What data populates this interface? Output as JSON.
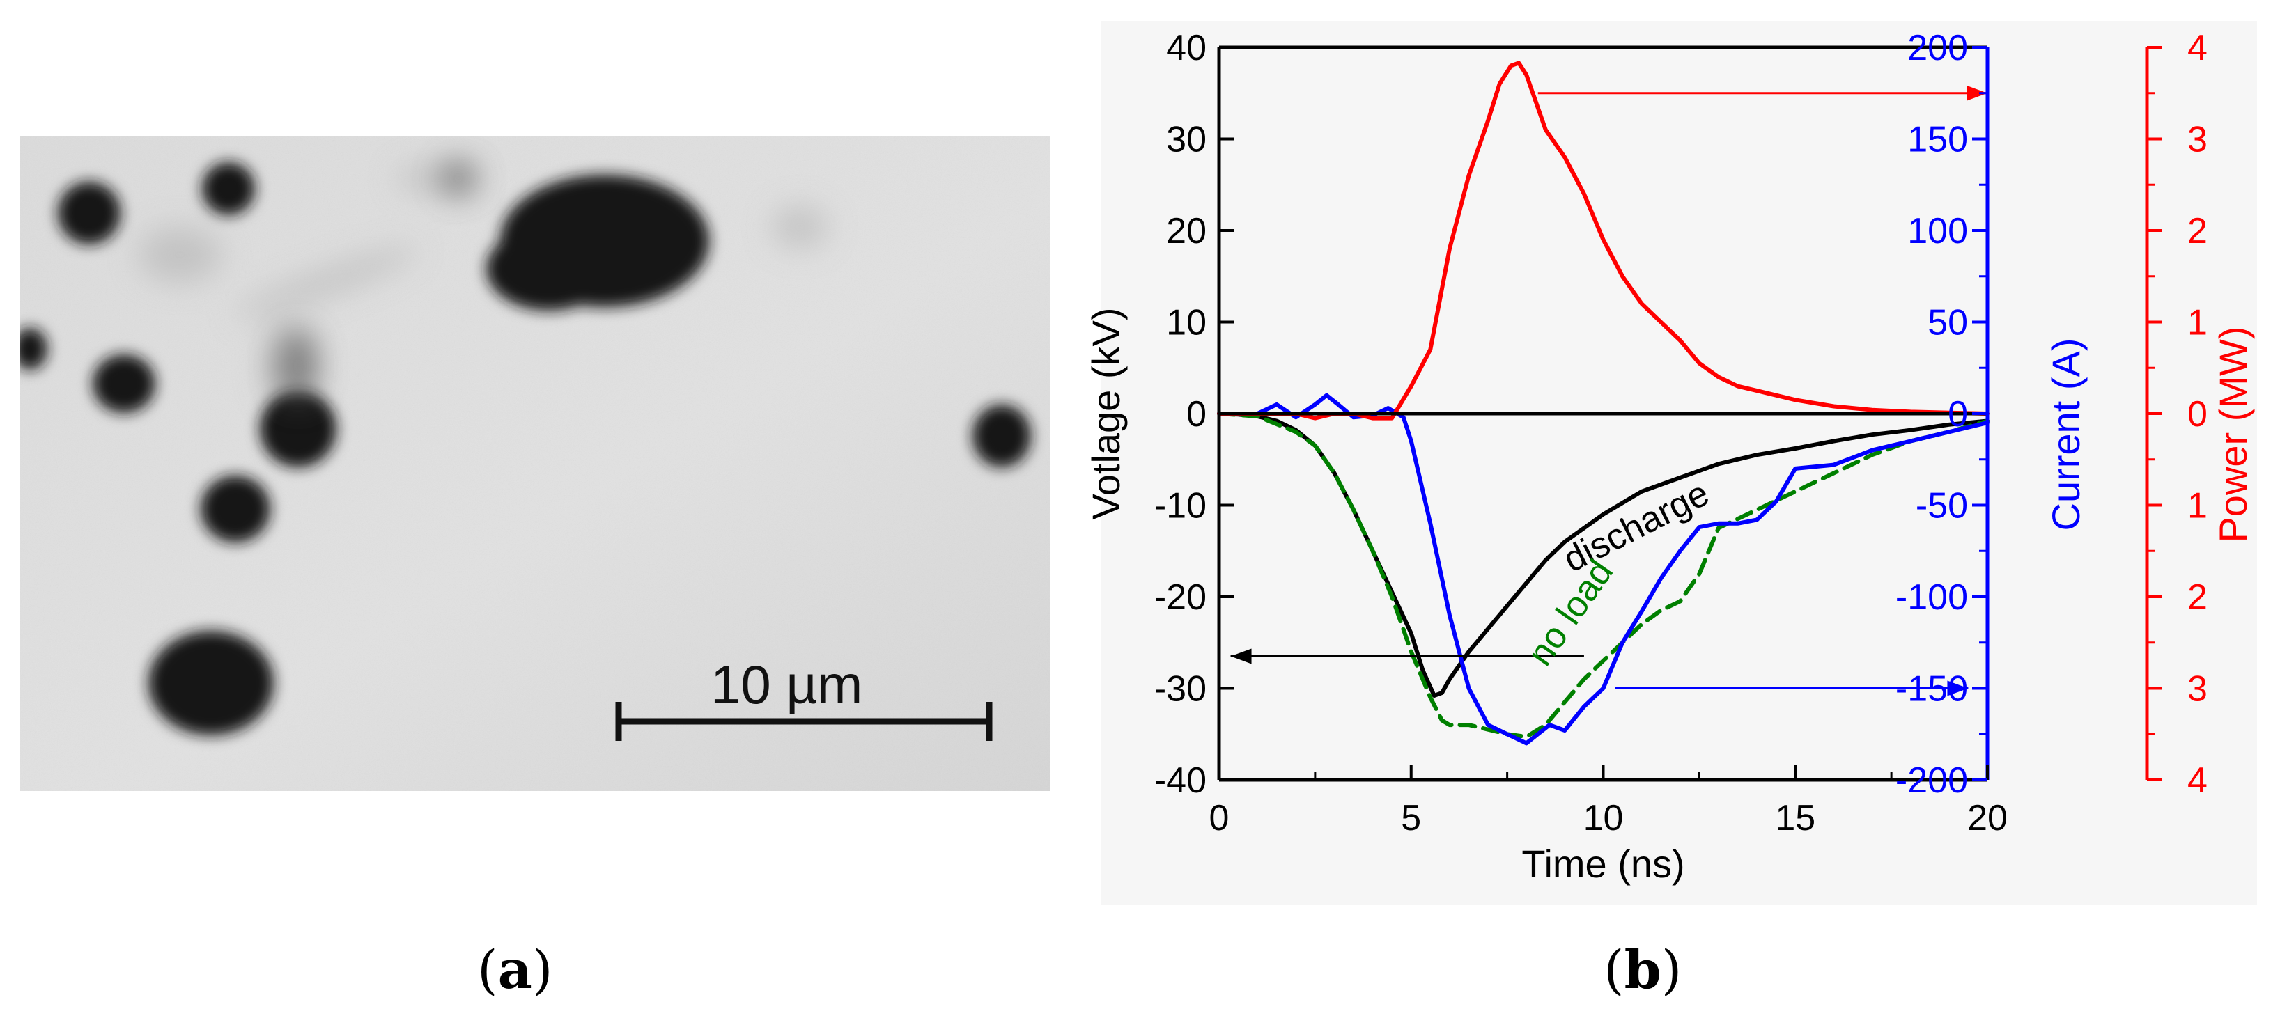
{
  "panel_a": {
    "scale_bar_label": "10 µm",
    "caption_open": "(",
    "caption_letter": "a",
    "caption_close": ")"
  },
  "panel_b": {
    "caption_open": "(",
    "caption_letter": "b",
    "caption_close": ")"
  },
  "chart_data": {
    "type": "line",
    "xlabel": "Time (ns)",
    "xlim": [
      0,
      20
    ],
    "xticks": [
      0,
      5,
      10,
      15,
      20
    ],
    "axes": {
      "voltage": {
        "label": "Votlage (kV)",
        "ylim": [
          -40,
          40
        ],
        "ticks": [
          -40,
          -30,
          -20,
          -10,
          0,
          10,
          20,
          30,
          40
        ],
        "color": "#000000"
      },
      "current": {
        "label": "Current (A)",
        "ylim": [
          -200,
          200
        ],
        "ticks": [
          -200,
          -150,
          -100,
          -50,
          0,
          50,
          100,
          150,
          200
        ],
        "color": "#0000ff"
      },
      "power": {
        "label": "Power (MW)",
        "ylim": [
          -4,
          4
        ],
        "ticks": [
          -4,
          -3,
          -2,
          -1,
          0,
          1,
          2,
          3,
          4
        ],
        "tick_labels": [
          "4",
          "3",
          "2",
          "1",
          "0",
          "1",
          "2",
          "3",
          "4"
        ],
        "color": "#ff0000"
      }
    },
    "series": [
      {
        "name": "discharge",
        "axis": "voltage",
        "color": "#000000",
        "dash": false,
        "x": [
          0,
          0.5,
          1,
          1.5,
          2,
          2.5,
          3,
          3.5,
          4,
          4.5,
          5,
          5.3,
          5.6,
          5.8,
          6,
          6.5,
          7,
          7.5,
          8,
          8.5,
          9,
          9.5,
          10,
          11,
          12,
          13,
          14,
          15,
          16,
          17,
          18,
          19,
          20
        ],
        "y": [
          0,
          -0.1,
          -0.3,
          -0.8,
          -1.8,
          -3.5,
          -6.5,
          -10.5,
          -15,
          -19.5,
          -24,
          -28,
          -30.8,
          -30.5,
          -29,
          -26,
          -23.5,
          -21,
          -18.5,
          -16,
          -14,
          -12.5,
          -11,
          -8.5,
          -7,
          -5.5,
          -4.5,
          -3.8,
          -3,
          -2.3,
          -1.8,
          -1.2,
          -0.8
        ]
      },
      {
        "name": "no load",
        "axis": "voltage",
        "color": "#008000",
        "dash": true,
        "x": [
          0,
          1,
          2,
          2.5,
          3,
          3.5,
          4,
          4.5,
          5,
          5.5,
          5.8,
          6,
          6.5,
          7,
          7.5,
          8,
          8.5,
          9,
          9.5,
          10,
          10.5,
          11,
          11.5,
          12,
          12.5,
          13,
          13.5,
          14,
          15,
          16,
          17,
          18,
          19,
          20
        ],
        "y": [
          0,
          -0.3,
          -2,
          -3.5,
          -6.5,
          -10.5,
          -15,
          -20,
          -26,
          -31,
          -33.5,
          -34,
          -34,
          -34.5,
          -35,
          -35.3,
          -34,
          -31.5,
          -29,
          -27,
          -25,
          -23,
          -21.5,
          -20.5,
          -17.5,
          -12.5,
          -11.5,
          -10.5,
          -8.5,
          -6.5,
          -4.5,
          -3,
          -2,
          -0.8
        ]
      },
      {
        "name": "current",
        "axis": "current",
        "color": "#0000ff",
        "dash": false,
        "x": [
          0,
          1,
          1.5,
          2,
          2.5,
          2.8,
          3.1,
          3.5,
          4,
          4.4,
          4.8,
          5,
          5.5,
          6,
          6.5,
          7,
          7.5,
          7.8,
          8,
          8.3,
          8.6,
          9,
          9.5,
          10,
          10.5,
          11,
          11.5,
          12,
          12.5,
          13,
          13.5,
          14,
          14.5,
          15,
          16,
          17,
          18,
          19,
          20
        ],
        "y": [
          0,
          0,
          5,
          -2,
          5,
          10,
          5,
          -2,
          -1,
          3,
          -2,
          -15,
          -60,
          -110,
          -150,
          -170,
          -175,
          -178,
          -180,
          -175,
          -170,
          -173,
          -160,
          -150,
          -125,
          -108,
          -90,
          -75,
          -62,
          -60,
          -60,
          -58,
          -48,
          -30,
          -28,
          -20,
          -15,
          -10,
          -5
        ]
      },
      {
        "name": "power",
        "axis": "power",
        "color": "#ff0000",
        "dash": false,
        "x": [
          0,
          1,
          2,
          2.5,
          3,
          3.5,
          4,
          4.5,
          5,
          5.5,
          6,
          6.5,
          7,
          7.3,
          7.6,
          7.8,
          8,
          8.5,
          9,
          9.5,
          10,
          10.5,
          11,
          11.5,
          12,
          12.5,
          13,
          13.5,
          14,
          14.5,
          15,
          16,
          17,
          18,
          19,
          20
        ],
        "y": [
          0,
          0,
          0,
          -0.05,
          0,
          0,
          -0.05,
          -0.05,
          0.3,
          0.7,
          1.8,
          2.6,
          3.2,
          3.6,
          3.8,
          3.83,
          3.7,
          3.1,
          2.8,
          2.4,
          1.9,
          1.5,
          1.2,
          1.0,
          0.8,
          0.55,
          0.4,
          0.3,
          0.25,
          0.2,
          0.15,
          0.08,
          0.04,
          0.02,
          0.01,
          0
        ]
      }
    ],
    "annotations": [
      {
        "text": "discharge",
        "color": "#000000",
        "rotation": -27
      },
      {
        "text": "no load",
        "color": "#008000",
        "rotation": -55
      }
    ],
    "arrows": [
      {
        "axis": "voltage",
        "direction": "left",
        "y": -26.5,
        "x_from": 9.5,
        "x_to": 0.3,
        "color": "#000000"
      },
      {
        "axis": "current",
        "direction": "right",
        "y": -150,
        "x_from": 10.3,
        "x_to": 19.5,
        "color": "#0000ff"
      },
      {
        "axis": "power",
        "direction": "right",
        "y": 3.5,
        "x_from": 8.3,
        "x_to": 20.0,
        "color": "#ff0000"
      }
    ]
  }
}
